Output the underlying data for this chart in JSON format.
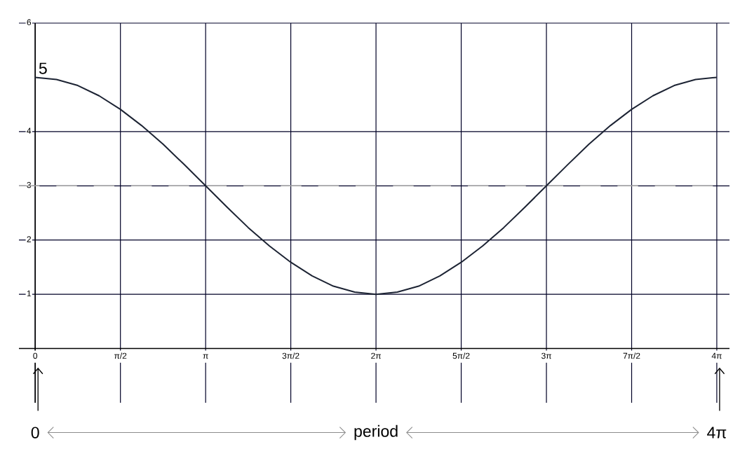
{
  "chart_data": {
    "type": "line",
    "x": [
      0,
      0.393,
      0.785,
      1.178,
      1.571,
      1.963,
      2.356,
      2.749,
      3.142,
      3.534,
      3.927,
      4.32,
      4.712,
      5.105,
      5.498,
      5.89,
      6.283,
      6.676,
      7.069,
      7.461,
      7.854,
      8.247,
      8.639,
      9.032,
      9.425,
      9.817,
      10.21,
      10.603,
      10.996,
      11.388,
      11.781,
      12.174,
      12.566
    ],
    "series": [
      {
        "color": "#1c2333",
        "values": [
          5,
          4.96,
          4.85,
          4.66,
          4.41,
          4.11,
          3.77,
          3.39,
          3,
          2.61,
          2.23,
          1.89,
          1.59,
          1.34,
          1.15,
          1.04,
          1,
          1.04,
          1.15,
          1.34,
          1.59,
          1.89,
          2.23,
          2.61,
          3,
          3.39,
          3.77,
          4.11,
          4.41,
          4.66,
          4.85,
          4.96,
          5
        ]
      }
    ],
    "xlim": [
      -0.3,
      12.8
    ],
    "ylim": [
      -1,
      6
    ],
    "xticks": [
      0,
      {
        "value": 1.571,
        "label": "π/2"
      },
      {
        "value": 3.142,
        "label": "π"
      },
      {
        "value": 4.712,
        "label": "3π/2"
      },
      {
        "value": 6.283,
        "label": "2π"
      },
      {
        "value": 7.854,
        "label": "5π/2"
      },
      {
        "value": 9.425,
        "label": "3π"
      },
      {
        "value": 10.996,
        "label": "7π/2"
      },
      {
        "value": 12.566,
        "label": "4π"
      }
    ],
    "yticks": [
      1,
      2,
      3,
      4,
      6
    ],
    "grid": true,
    "marker": "none",
    "line_style": "solid",
    "ref_lines": [
      {
        "axis": "y",
        "value": 3,
        "color": "#a8a8a8",
        "line_style": "dashed"
      }
    ],
    "annotations": [
      {
        "text": "5",
        "x": 0,
        "y": 5
      },
      "0",
      "period",
      "4π"
    ]
  }
}
